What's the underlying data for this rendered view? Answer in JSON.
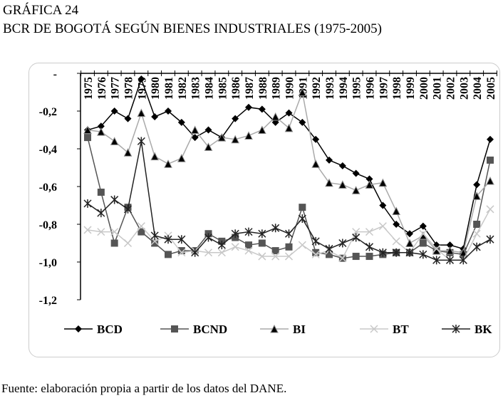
{
  "header": {
    "label": "GRÁFICA 24",
    "title": "BCR DE BOGOTÁ SEGÚN BIENES INDUSTRIALES (1975-2005)"
  },
  "footer": {
    "source": "Fuente: elaboración propia a partir de los datos del DANE."
  },
  "chart_data": {
    "type": "line",
    "title": "BCR DE BOGOTÁ SEGÚN BIENES INDUSTRIALES (1975-2005)",
    "xlabel": "",
    "ylabel": "",
    "ylim": [
      -1.2,
      0
    ],
    "y_ticks": [
      "-",
      "-0,2",
      "-0,4",
      "-0,6",
      "-0,8",
      "-1,0",
      "-1,2"
    ],
    "y_tick_values": [
      0,
      -0.2,
      -0.4,
      -0.6,
      -0.8,
      -1.0,
      -1.2
    ],
    "legend_position": "bottom",
    "categories": [
      "1975",
      "1976",
      "1977",
      "1978",
      "1979",
      "1980",
      "1981",
      "1982",
      "1983",
      "1984",
      "1985",
      "1986",
      "1987",
      "1988",
      "1989",
      "1990",
      "1991",
      "1992",
      "1993",
      "1994",
      "1995",
      "1996",
      "1997",
      "1998",
      "1999",
      "2000",
      "2001",
      "2002",
      "2003",
      "2004",
      "2005"
    ],
    "series": [
      {
        "name": "BCD",
        "color": "#000000",
        "marker": "diamond",
        "values": [
          -0.3,
          -0.28,
          -0.2,
          -0.24,
          -0.03,
          -0.23,
          -0.2,
          -0.26,
          -0.34,
          -0.3,
          -0.34,
          -0.24,
          -0.18,
          -0.19,
          -0.26,
          -0.21,
          -0.26,
          -0.35,
          -0.46,
          -0.49,
          -0.53,
          -0.56,
          -0.7,
          -0.8,
          -0.85,
          -0.81,
          -0.91,
          -0.91,
          -0.93,
          -0.59,
          -0.35
        ]
      },
      {
        "name": "BCND",
        "color": "#555555",
        "marker": "square",
        "values": [
          -0.34,
          -0.63,
          -0.9,
          -0.71,
          -0.84,
          -0.9,
          -0.96,
          -0.94,
          -0.94,
          -0.85,
          -0.89,
          -0.87,
          -0.91,
          -0.9,
          -0.94,
          -0.92,
          -0.71,
          -0.95,
          -0.96,
          -0.98,
          -0.97,
          -0.97,
          -0.96,
          -0.95,
          -0.95,
          -0.9,
          -0.94,
          -0.95,
          -0.96,
          -0.8,
          -0.46
        ]
      },
      {
        "name": "BI",
        "color": "#aaaaaa",
        "marker": "triangle",
        "values": [
          -0.3,
          -0.31,
          -0.36,
          -0.42,
          -0.21,
          -0.44,
          -0.48,
          -0.45,
          -0.3,
          -0.39,
          -0.34,
          -0.35,
          -0.33,
          -0.3,
          -0.23,
          -0.29,
          -0.1,
          -0.48,
          -0.58,
          -0.59,
          -0.62,
          -0.59,
          -0.58,
          -0.73,
          -0.9,
          -0.86,
          -0.94,
          -0.94,
          -0.95,
          -0.65,
          -0.57
        ]
      },
      {
        "name": "BT",
        "color": "#c8c8c8",
        "marker": "x",
        "values": [
          -0.83,
          -0.84,
          -0.84,
          -0.9,
          -0.81,
          -0.89,
          -0.86,
          -0.95,
          -0.94,
          -0.95,
          -0.95,
          -0.92,
          -0.94,
          -0.97,
          -0.97,
          -0.97,
          -0.91,
          -0.96,
          -0.94,
          -0.98,
          -0.84,
          -0.84,
          -0.81,
          -0.89,
          -0.95,
          -0.85,
          -0.93,
          -0.99,
          -0.99,
          -0.85,
          -0.72
        ]
      },
      {
        "name": "BK",
        "color": "#222222",
        "marker": "star",
        "values": [
          -0.69,
          -0.74,
          -0.67,
          -0.72,
          -0.36,
          -0.86,
          -0.88,
          -0.88,
          -0.95,
          -0.87,
          -0.91,
          -0.85,
          -0.84,
          -0.85,
          -0.82,
          -0.85,
          -0.77,
          -0.89,
          -0.93,
          -0.9,
          -0.87,
          -0.92,
          -0.95,
          -0.95,
          -0.95,
          -0.96,
          -0.99,
          -0.99,
          -0.99,
          -0.92,
          -0.88
        ]
      }
    ]
  }
}
